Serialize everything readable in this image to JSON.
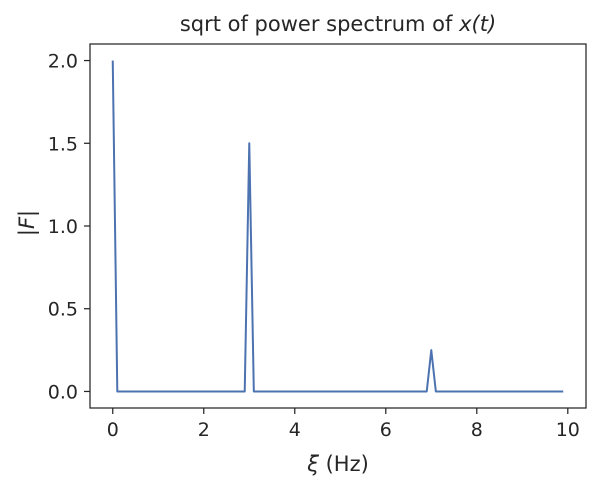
{
  "chart_data": {
    "type": "line",
    "title": "sqrt of power spectrum of x(t)",
    "title_parts": {
      "prefix": "sqrt of power spectrum of ",
      "math": "x(t)"
    },
    "xlabel": "ξ (Hz)",
    "xlabel_parts": {
      "math": "ξ",
      "rest": " (Hz)"
    },
    "ylabel": "|F|",
    "xlim": [
      -0.5,
      10.4
    ],
    "ylim": [
      -0.1,
      2.1
    ],
    "xticks": [
      0,
      2,
      4,
      6,
      8,
      10
    ],
    "xtick_labels": [
      "0",
      "2",
      "4",
      "6",
      "8",
      "10"
    ],
    "yticks": [
      0.0,
      0.5,
      1.0,
      1.5,
      2.0
    ],
    "ytick_labels": [
      "0.0",
      "0.5",
      "1.0",
      "1.5",
      "2.0"
    ],
    "grid": false,
    "colors": {
      "line": "#4c72b0",
      "axes": "#262626",
      "text": "#262626"
    },
    "series": [
      {
        "x": [
          0.0,
          0.1,
          2.9,
          3.0,
          3.1,
          6.9,
          7.0,
          7.1,
          9.9
        ],
        "y": [
          2.0,
          0.0,
          0.0,
          1.5,
          0.0,
          0.0,
          0.25,
          0.0,
          0.0
        ]
      }
    ]
  }
}
